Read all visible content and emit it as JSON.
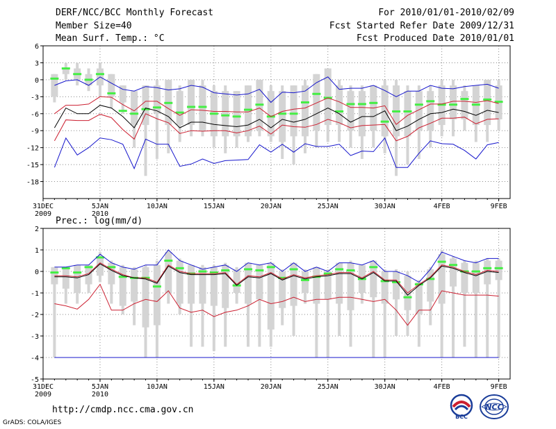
{
  "header": {
    "title": "DERF/NCC/BCC Monthly Forecast",
    "member_size": "Member Size=40",
    "variable": "Mean Surf. Temp.: °C",
    "period": "For 2010/01/01-2010/02/09",
    "fcst_started": "Fcst Started Refer Date 2009/12/31",
    "fcst_produced": "Fcst Produced Date 2010/01/01"
  },
  "footer": {
    "url": "http://cmdp.ncc.cma.gov.cn",
    "credit": "GrADS: COLA/IGES",
    "logo_bcc": "BCC",
    "logo_ncc": "NCC"
  },
  "colors": {
    "box": "#d4d4d4",
    "median": "#44ee44",
    "ensemble_max": "#1515cc",
    "ensemble_min": "#1515cc",
    "upper_percentile": "#cc1f30",
    "lower_percentile": "#cc1f30",
    "mean": "#000000",
    "grid": "#888888"
  },
  "chart_data": [
    {
      "type": "line",
      "title": "Mean Surf. Temp.: °C",
      "xlabel": "",
      "ylabel": "",
      "x_days": [
        1,
        2,
        3,
        4,
        5,
        6,
        7,
        8,
        9,
        10,
        11,
        12,
        13,
        14,
        15,
        16,
        17,
        18,
        19,
        20,
        21,
        22,
        23,
        24,
        25,
        26,
        27,
        28,
        29,
        30,
        31,
        32,
        33,
        34,
        35,
        36,
        37,
        38,
        39,
        40
      ],
      "x_ticks": [
        {
          "day": 0,
          "label": "31DEC",
          "sublabel": "2009"
        },
        {
          "day": 5,
          "label": "5JAN",
          "sublabel": "2010"
        },
        {
          "day": 10,
          "label": "10JAN",
          "sublabel": ""
        },
        {
          "day": 15,
          "label": "15JAN",
          "sublabel": ""
        },
        {
          "day": 20,
          "label": "20JAN",
          "sublabel": ""
        },
        {
          "day": 25,
          "label": "25JAN",
          "sublabel": ""
        },
        {
          "day": 30,
          "label": "30JAN",
          "sublabel": ""
        },
        {
          "day": 35,
          "label": "4FEB",
          "sublabel": ""
        },
        {
          "day": 40,
          "label": "9FEB",
          "sublabel": ""
        }
      ],
      "xlim": [
        0,
        41
      ],
      "ylim": [
        -21,
        6
      ],
      "y_ticks": [
        6,
        3,
        0,
        -3,
        -6,
        -9,
        -12,
        -15,
        -18
      ],
      "grid": true,
      "box_low": [
        -3,
        1,
        0,
        -1,
        -1,
        -3,
        -4,
        -8,
        -8,
        -6,
        -8,
        -8,
        -8,
        -9,
        -10,
        -10,
        -10,
        -10,
        -9,
        -10,
        -11,
        -10,
        -10,
        -9,
        -8,
        -8,
        -9,
        -10,
        -9,
        -10,
        -10,
        -10,
        -9,
        -9,
        -8,
        -7,
        -7,
        -8,
        -8,
        -7
      ],
      "box_high": [
        1,
        2,
        2,
        1,
        2,
        1,
        -1,
        -2,
        -1,
        -1,
        0,
        -2,
        0,
        -1,
        -2,
        -2,
        -2,
        -1,
        0,
        -2,
        -2,
        -1,
        -1,
        1,
        2,
        -1,
        -2,
        -2,
        -1,
        -1,
        -1,
        -2,
        -2,
        -2,
        -1,
        -1,
        -2,
        -1,
        0,
        -1
      ],
      "whisker_low": [
        -4,
        0,
        -1,
        -2,
        -3,
        -5,
        -6,
        -12,
        -17,
        -14,
        -13,
        -11,
        -10,
        -10,
        -12,
        -13,
        -12,
        -11,
        -10,
        -11,
        -14,
        -15,
        -13,
        -12,
        -11,
        -11,
        -12,
        -14,
        -12,
        -13,
        -17,
        -15,
        -14,
        -12,
        -10,
        -10,
        -9,
        -11,
        -11,
        -9
      ],
      "whisker_high": [
        1,
        3,
        3,
        2,
        3,
        1,
        -1,
        -2,
        -1,
        0,
        0,
        -1,
        0,
        0,
        -1,
        -1,
        -2,
        -1,
        0,
        -1,
        -1,
        -1,
        0,
        1,
        2,
        0,
        -1,
        -1,
        -1,
        0,
        0,
        -1,
        -1,
        -1,
        0,
        0,
        -1,
        -1,
        0,
        0
      ],
      "series": [
        {
          "name": "median",
          "style": "dash",
          "values": [
            0.2,
            2.0,
            1.0,
            0.0,
            1.0,
            -2.4,
            -5.5,
            -6.0,
            -5.2,
            -4.9,
            -4.1,
            -5.8,
            -4.8,
            -4.8,
            -6.0,
            -6.3,
            -6.5,
            -5.3,
            -4.4,
            -6.5,
            -6.0,
            -6.0,
            -4.0,
            -2.5,
            -3.2,
            -5.6,
            -4.3,
            -4.3,
            -4.1,
            -7.4,
            -5.6,
            -5.6,
            -4.4,
            -3.8,
            -4.4,
            -4.4,
            -3.4,
            -4.4,
            -3.5,
            -3.9
          ]
        },
        {
          "name": "ensemble_max",
          "style": "line",
          "values": [
            -1.0,
            -0.2,
            0.0,
            -1.0,
            0.5,
            -0.6,
            -1.7,
            -2.0,
            -1.2,
            -1.4,
            -1.8,
            -1.6,
            -1.0,
            -1.3,
            -2.3,
            -2.5,
            -2.7,
            -2.5,
            -1.7,
            -4.0,
            -2.2,
            -2.3,
            -2.0,
            -0.5,
            0.5,
            -1.7,
            -1.5,
            -1.5,
            -1.0,
            -1.9,
            -3.0,
            -2.0,
            -2.0,
            -1.0,
            -1.5,
            -1.6,
            -1.2,
            -1.0,
            -0.8,
            -1.5
          ]
        },
        {
          "name": "upper_percentile",
          "style": "line",
          "values": [
            -6.0,
            -4.5,
            -4.5,
            -4.3,
            -3.0,
            -3.1,
            -4.4,
            -5.5,
            -3.8,
            -3.8,
            -5.1,
            -6.3,
            -5.3,
            -5.4,
            -5.6,
            -5.6,
            -5.7,
            -5.7,
            -5.0,
            -6.5,
            -5.6,
            -5.2,
            -5.0,
            -4.1,
            -3.2,
            -3.9,
            -4.9,
            -4.9,
            -5.0,
            -4.6,
            -7.9,
            -6.3,
            -5.3,
            -4.3,
            -4.3,
            -3.8,
            -3.8,
            -4.0,
            -3.7,
            -4.2
          ]
        },
        {
          "name": "mean",
          "style": "line",
          "values": [
            -8.5,
            -5.0,
            -6.0,
            -6.0,
            -4.5,
            -5.0,
            -6.5,
            -8.5,
            -5.0,
            -5.5,
            -6.5,
            -8.5,
            -7.5,
            -7.5,
            -7.9,
            -8.1,
            -8.3,
            -8.0,
            -7.0,
            -8.5,
            -7.0,
            -7.5,
            -7.0,
            -6.0,
            -5.0,
            -6.0,
            -7.5,
            -6.5,
            -6.5,
            -5.5,
            -9.0,
            -8.2,
            -7.0,
            -6.0,
            -5.8,
            -5.2,
            -5.6,
            -6.3,
            -5.4,
            -5.8
          ]
        },
        {
          "name": "lower_percentile",
          "style": "line",
          "values": [
            -10.8,
            -7.1,
            -7.2,
            -7.2,
            -6.1,
            -6.7,
            -8.8,
            -10.5,
            -6.0,
            -6.9,
            -7.6,
            -9.5,
            -9.0,
            -9.1,
            -9.0,
            -9.0,
            -9.4,
            -9.0,
            -8.2,
            -9.6,
            -8.0,
            -8.3,
            -8.4,
            -7.9,
            -7.0,
            -7.6,
            -8.5,
            -8.1,
            -8.0,
            -7.9,
            -10.8,
            -10.0,
            -8.5,
            -7.7,
            -6.8,
            -6.8,
            -6.6,
            -7.8,
            -7.0,
            -6.9
          ]
        },
        {
          "name": "ensemble_min",
          "style": "line",
          "values": [
            -15.5,
            -10.3,
            -13.3,
            -12.0,
            -10.3,
            -10.6,
            -11.4,
            -15.7,
            -10.5,
            -11.4,
            -11.4,
            -15.3,
            -14.9,
            -14.0,
            -14.8,
            -14.3,
            -14.2,
            -14.1,
            -11.5,
            -12.8,
            -11.4,
            -12.8,
            -11.3,
            -11.8,
            -11.8,
            -11.4,
            -13.4,
            -12.6,
            -12.7,
            -10.3,
            -15.5,
            -15.5,
            -13.0,
            -10.8,
            -11.3,
            -11.4,
            -12.5,
            -14.0,
            -11.5,
            -11.1
          ]
        }
      ]
    },
    {
      "type": "line",
      "title": "Prec.: log(mm/d)",
      "xlabel": "",
      "ylabel": "",
      "x_days": [
        1,
        2,
        3,
        4,
        5,
        6,
        7,
        8,
        9,
        10,
        11,
        12,
        13,
        14,
        15,
        16,
        17,
        18,
        19,
        20,
        21,
        22,
        23,
        24,
        25,
        26,
        27,
        28,
        29,
        30,
        31,
        32,
        33,
        34,
        35,
        36,
        37,
        38,
        39,
        40
      ],
      "x_ticks": [
        {
          "day": 0,
          "label": "31DEC",
          "sublabel": "2009"
        },
        {
          "day": 5,
          "label": "5JAN",
          "sublabel": "2010"
        },
        {
          "day": 10,
          "label": "10JAN",
          "sublabel": ""
        },
        {
          "day": 15,
          "label": "15JAN",
          "sublabel": ""
        },
        {
          "day": 20,
          "label": "20JAN",
          "sublabel": ""
        },
        {
          "day": 25,
          "label": "25JAN",
          "sublabel": ""
        },
        {
          "day": 30,
          "label": "30JAN",
          "sublabel": ""
        },
        {
          "day": 35,
          "label": "4FEB",
          "sublabel": ""
        },
        {
          "day": 40,
          "label": "9FEB",
          "sublabel": ""
        }
      ],
      "xlim": [
        0,
        41
      ],
      "ylim": [
        -5,
        2
      ],
      "y_ticks": [
        2,
        1,
        0,
        -1,
        -2,
        -3,
        -4,
        -5
      ],
      "grid": true,
      "box_low": [
        -0.6,
        -0.8,
        -1.0,
        -0.6,
        -0.2,
        -0.6,
        -1.6,
        -1.4,
        -2.6,
        -2.5,
        -1.0,
        -1.5,
        -1.5,
        -1.5,
        -1.6,
        -1.7,
        -1.0,
        -1.5,
        -1.3,
        -2.7,
        -1.7,
        -1.6,
        -1.0,
        -1.5,
        -1.3,
        -1.5,
        -1.8,
        -1.0,
        -1.2,
        -1.5,
        -1.3,
        -1.8,
        -2.0,
        -1.4,
        -1.5,
        -0.7,
        -1.0,
        -1.0,
        -0.6,
        -0.4
      ],
      "box_high": [
        0.2,
        0.2,
        0.3,
        0.3,
        0.7,
        0.4,
        0.2,
        0.1,
        0.2,
        0.3,
        0.9,
        0.5,
        0.3,
        0.2,
        0.2,
        0.3,
        0.1,
        0.4,
        0.3,
        0.4,
        0.0,
        0.4,
        0.0,
        0.2,
        0.0,
        0.4,
        0.4,
        0.3,
        0.5,
        0.0,
        0.0,
        -0.2,
        -0.5,
        0.1,
        0.8,
        0.6,
        0.4,
        0.4,
        0.5,
        0.5
      ],
      "whisker_low": [
        -4.0,
        -1.5,
        -1.5,
        -1.0,
        -0.5,
        -1.5,
        -2.0,
        -2.5,
        -4.0,
        -4.0,
        -1.5,
        -2.0,
        -3.5,
        -3.5,
        -3.7,
        -3.5,
        -1.5,
        -3.5,
        -3.5,
        -3.5,
        -2.5,
        -3.0,
        -1.5,
        -4.0,
        -4.0,
        -3.0,
        -3.5,
        -1.5,
        -4.0,
        -4.0,
        -3.0,
        -3.0,
        -3.5,
        -2.5,
        -4.0,
        -4.0,
        -3.5,
        -4.0,
        -4.0,
        -4.0
      ],
      "whisker_high": [
        0.2,
        0.2,
        0.3,
        0.3,
        0.9,
        0.5,
        0.3,
        0.2,
        0.3,
        0.5,
        1.0,
        0.6,
        0.3,
        0.3,
        0.3,
        0.4,
        0.2,
        0.4,
        0.3,
        0.4,
        0.1,
        0.4,
        0.1,
        0.2,
        0.1,
        0.4,
        0.5,
        0.3,
        0.5,
        0.1,
        0.1,
        0.0,
        -0.4,
        0.2,
        1.0,
        0.7,
        0.5,
        0.5,
        0.6,
        0.6
      ],
      "series": [
        {
          "name": "median",
          "style": "dash",
          "values": [
            -0.05,
            0.15,
            -0.05,
            0.2,
            0.65,
            0.2,
            -0.25,
            -0.3,
            -0.3,
            -0.7,
            0.5,
            0.15,
            -0.1,
            0.0,
            -0.05,
            0.05,
            -0.65,
            0.1,
            0.05,
            0.2,
            -0.3,
            0.1,
            -0.4,
            -0.25,
            -0.1,
            0.1,
            0.05,
            -0.35,
            0.2,
            -0.45,
            -0.5,
            -1.2,
            -0.6,
            -0.35,
            0.45,
            0.3,
            0.0,
            0.0,
            0.15,
            0.15
          ]
        },
        {
          "name": "ensemble_max",
          "style": "line",
          "values": [
            0.2,
            0.2,
            0.3,
            0.3,
            0.8,
            0.4,
            0.2,
            0.1,
            0.3,
            0.3,
            1.0,
            0.5,
            0.3,
            0.1,
            0.2,
            0.3,
            0.0,
            0.4,
            0.3,
            0.4,
            0.0,
            0.4,
            0.0,
            0.2,
            0.0,
            0.4,
            0.4,
            0.3,
            0.5,
            0.0,
            0.0,
            -0.2,
            -0.5,
            0.1,
            0.9,
            0.7,
            0.5,
            0.4,
            0.6,
            0.6
          ]
        },
        {
          "name": "upper_percentile",
          "style": "line",
          "values": [
            -0.2,
            -0.2,
            -0.25,
            -0.1,
            0.4,
            0.1,
            -0.15,
            -0.3,
            -0.3,
            -0.5,
            0.3,
            0.0,
            -0.1,
            -0.1,
            -0.1,
            -0.05,
            -0.6,
            -0.2,
            -0.25,
            -0.05,
            -0.35,
            -0.15,
            -0.3,
            -0.2,
            -0.15,
            -0.05,
            -0.05,
            -0.3,
            0.0,
            -0.4,
            -0.4,
            -1.0,
            -0.6,
            -0.25,
            0.3,
            0.2,
            0.0,
            -0.15,
            0.05,
            0.0
          ]
        },
        {
          "name": "mean",
          "style": "line",
          "values": [
            -0.25,
            -0.25,
            -0.3,
            -0.15,
            0.35,
            0.05,
            -0.2,
            -0.3,
            -0.35,
            -0.55,
            0.25,
            -0.05,
            -0.15,
            -0.15,
            -0.15,
            -0.1,
            -0.65,
            -0.25,
            -0.3,
            -0.1,
            -0.4,
            -0.2,
            -0.35,
            -0.25,
            -0.2,
            -0.1,
            -0.1,
            -0.35,
            -0.05,
            -0.45,
            -0.45,
            -1.1,
            -0.65,
            -0.3,
            0.25,
            0.15,
            -0.05,
            -0.2,
            0.0,
            -0.05
          ]
        },
        {
          "name": "lower_percentile",
          "style": "line",
          "values": [
            -1.5,
            -1.6,
            -1.75,
            -1.3,
            -0.6,
            -1.8,
            -1.8,
            -1.5,
            -1.3,
            -1.4,
            -0.9,
            -1.7,
            -1.9,
            -1.8,
            -2.1,
            -1.9,
            -1.8,
            -1.6,
            -1.3,
            -1.5,
            -1.4,
            -1.2,
            -1.4,
            -1.3,
            -1.3,
            -1.2,
            -1.2,
            -1.3,
            -1.4,
            -1.3,
            -1.8,
            -2.5,
            -1.8,
            -1.8,
            -0.9,
            -1.0,
            -1.1,
            -1.1,
            -1.1,
            -1.15
          ]
        },
        {
          "name": "ensemble_min",
          "style": "line",
          "values": [
            -4.0,
            -4.0,
            -4.0,
            -4.0,
            -4.0,
            -4.0,
            -4.0,
            -4.0,
            -4.0,
            -4.0,
            -4.0,
            -4.0,
            -4.0,
            -4.0,
            -4.0,
            -4.0,
            -4.0,
            -4.0,
            -4.0,
            -4.0,
            -4.0,
            -4.0,
            -4.0,
            -4.0,
            -4.0,
            -4.0,
            -4.0,
            -4.0,
            -4.0,
            -4.0,
            -4.0,
            -4.0,
            -4.0,
            -4.0,
            -4.0,
            -4.0,
            -4.0,
            -4.0,
            -4.0,
            -4.0
          ]
        }
      ]
    }
  ]
}
